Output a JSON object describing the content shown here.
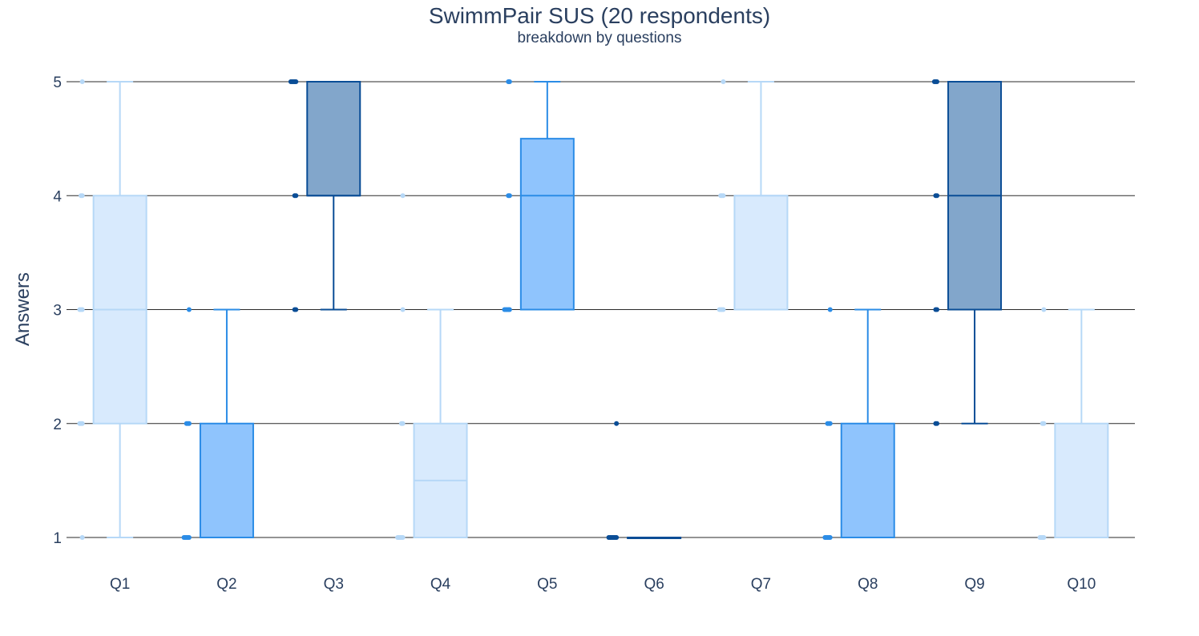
{
  "chart_data": {
    "type": "box",
    "title": "SwimmPair SUS (20 respondents)",
    "subtitle": "breakdown by questions",
    "ylabel": "Answers",
    "xlabel": "",
    "ylim": [
      0.8,
      5.2
    ],
    "yticks": [
      1,
      2,
      3,
      4,
      5
    ],
    "grid": true,
    "legend": "none",
    "categories": [
      "Q1",
      "Q2",
      "Q3",
      "Q4",
      "Q5",
      "Q6",
      "Q7",
      "Q8",
      "Q9",
      "Q10"
    ],
    "colors": {
      "light": {
        "fill": "#d8eafd",
        "line": "#b6d8f7"
      },
      "medium": {
        "fill": "#8fc4fd",
        "line": "#2b8ce6"
      },
      "dark": {
        "fill": "#82a6cb",
        "line": "#0a4d96"
      }
    },
    "series": [
      {
        "category": "Q1",
        "color": "light",
        "min": 1,
        "q1": 2,
        "median": 3,
        "q3": 4,
        "max": 5,
        "points": [
          1,
          2,
          2,
          2,
          3,
          3,
          3,
          4,
          4,
          5
        ]
      },
      {
        "category": "Q2",
        "color": "medium",
        "min": 1,
        "q1": 1,
        "median": 1,
        "q3": 2,
        "max": 3,
        "points": [
          1,
          1,
          1,
          1,
          1,
          2,
          2,
          2,
          3
        ]
      },
      {
        "category": "Q3",
        "color": "dark",
        "min": 3,
        "q1": 4,
        "median": 4,
        "q3": 5,
        "max": 5,
        "points": [
          3,
          3,
          4,
          4,
          5,
          5,
          5,
          5,
          5
        ]
      },
      {
        "category": "Q4",
        "color": "light",
        "min": 1,
        "q1": 1,
        "median": 1.5,
        "q3": 2,
        "max": 3,
        "points": [
          1,
          1,
          1,
          1,
          1,
          2,
          2,
          3,
          4
        ]
      },
      {
        "category": "Q5",
        "color": "medium",
        "min": 3,
        "q1": 3,
        "median": 4,
        "q3": 4.5,
        "max": 5,
        "points": [
          3,
          3,
          3,
          3,
          3,
          4,
          4,
          5,
          5
        ]
      },
      {
        "category": "Q6",
        "color": "dark",
        "min": 1,
        "q1": 1,
        "median": 1,
        "q3": 1,
        "max": 1,
        "points": [
          1,
          1,
          1,
          1,
          1,
          1,
          1,
          2
        ]
      },
      {
        "category": "Q7",
        "color": "light",
        "min": 3,
        "q1": 3,
        "median": 4,
        "q3": 4,
        "max": 5,
        "points": [
          3,
          3,
          3,
          3,
          4,
          4,
          4,
          5
        ]
      },
      {
        "category": "Q8",
        "color": "medium",
        "min": 1,
        "q1": 1,
        "median": 1,
        "q3": 2,
        "max": 3,
        "points": [
          1,
          1,
          1,
          1,
          1,
          2,
          2,
          2,
          3
        ]
      },
      {
        "category": "Q9",
        "color": "dark",
        "min": 2,
        "q1": 3,
        "median": 4,
        "q3": 5,
        "max": 5,
        "points": [
          2,
          2,
          3,
          3,
          4,
          4,
          5,
          5,
          5
        ]
      },
      {
        "category": "Q10",
        "color": "light",
        "min": 1,
        "q1": 1,
        "median": 1,
        "q3": 2,
        "max": 3,
        "points": [
          1,
          1,
          1,
          1,
          2,
          2,
          3
        ]
      }
    ]
  }
}
